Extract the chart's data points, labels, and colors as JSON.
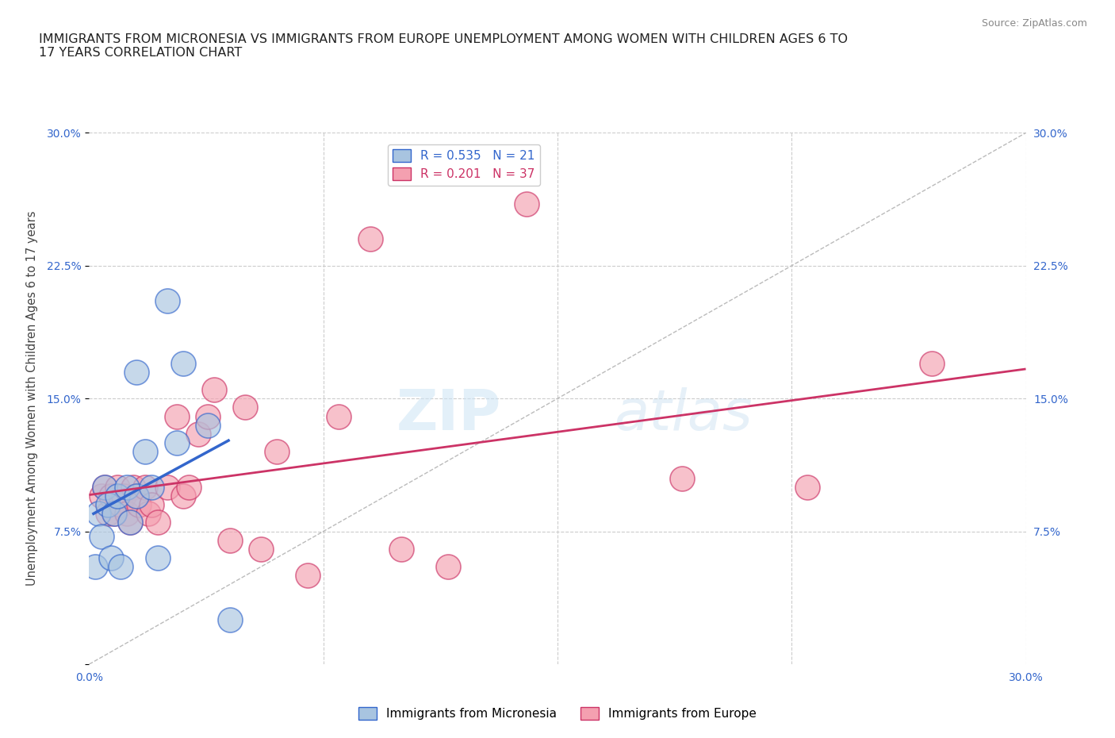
{
  "title": "IMMIGRANTS FROM MICRONESIA VS IMMIGRANTS FROM EUROPE UNEMPLOYMENT AMONG WOMEN WITH CHILDREN AGES 6 TO\n17 YEARS CORRELATION CHART",
  "source": "Source: ZipAtlas.com",
  "ylabel": "Unemployment Among Women with Children Ages 6 to 17 years",
  "xlim": [
    0.0,
    0.3
  ],
  "ylim": [
    0.0,
    0.3
  ],
  "micronesia_color": "#a8c4e0",
  "europe_color": "#f4a0b0",
  "micronesia_line_color": "#3366cc",
  "europe_line_color": "#cc3366",
  "micronesia_R": 0.535,
  "micronesia_N": 21,
  "europe_R": 0.201,
  "europe_N": 37,
  "watermark_zip": "ZIP",
  "watermark_atlas": "atlas",
  "background_color": "#ffffff",
  "grid_color": "#cccccc",
  "tick_color": "#3366cc",
  "micronesia_x": [
    0.002,
    0.003,
    0.004,
    0.005,
    0.006,
    0.007,
    0.008,
    0.009,
    0.01,
    0.012,
    0.013,
    0.015,
    0.015,
    0.018,
    0.02,
    0.022,
    0.025,
    0.028,
    0.03,
    0.038,
    0.045
  ],
  "micronesia_y": [
    0.055,
    0.085,
    0.072,
    0.1,
    0.09,
    0.06,
    0.085,
    0.095,
    0.055,
    0.1,
    0.08,
    0.165,
    0.095,
    0.12,
    0.1,
    0.06,
    0.205,
    0.125,
    0.17,
    0.135,
    0.025
  ],
  "europe_x": [
    0.004,
    0.005,
    0.006,
    0.007,
    0.008,
    0.009,
    0.01,
    0.011,
    0.012,
    0.013,
    0.014,
    0.015,
    0.016,
    0.018,
    0.019,
    0.02,
    0.022,
    0.025,
    0.028,
    0.03,
    0.032,
    0.035,
    0.038,
    0.04,
    0.045,
    0.05,
    0.055,
    0.06,
    0.07,
    0.08,
    0.09,
    0.1,
    0.115,
    0.14,
    0.19,
    0.23,
    0.27
  ],
  "europe_y": [
    0.095,
    0.1,
    0.085,
    0.095,
    0.085,
    0.1,
    0.09,
    0.095,
    0.085,
    0.08,
    0.1,
    0.095,
    0.09,
    0.1,
    0.085,
    0.09,
    0.08,
    0.1,
    0.14,
    0.095,
    0.1,
    0.13,
    0.14,
    0.155,
    0.07,
    0.145,
    0.065,
    0.12,
    0.05,
    0.14,
    0.24,
    0.065,
    0.055,
    0.26,
    0.105,
    0.1,
    0.17
  ]
}
